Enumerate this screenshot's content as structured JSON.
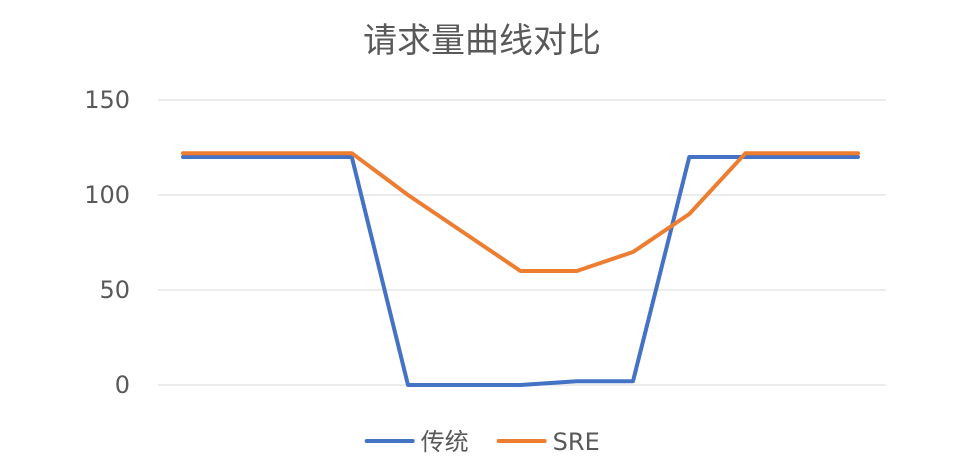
{
  "chart_data": {
    "type": "line",
    "title": "请求量曲线对比",
    "xlabel": "",
    "ylabel": "",
    "ylim": [
      0,
      150
    ],
    "y_ticks": [
      0,
      50,
      100,
      150
    ],
    "grid": true,
    "legend_position": "bottom",
    "x": [
      1,
      2,
      3,
      4,
      5,
      6,
      7,
      8,
      9,
      10,
      11,
      12,
      13
    ],
    "series": [
      {
        "name": "传统",
        "color": "#4472c4",
        "values": [
          120,
          120,
          120,
          120,
          0,
          0,
          0,
          2,
          2,
          120,
          120,
          120,
          120
        ]
      },
      {
        "name": "SRE",
        "color": "#ed7d31",
        "values": [
          122,
          122,
          122,
          122,
          100,
          80,
          60,
          60,
          70,
          90,
          122,
          122,
          122
        ]
      }
    ]
  }
}
